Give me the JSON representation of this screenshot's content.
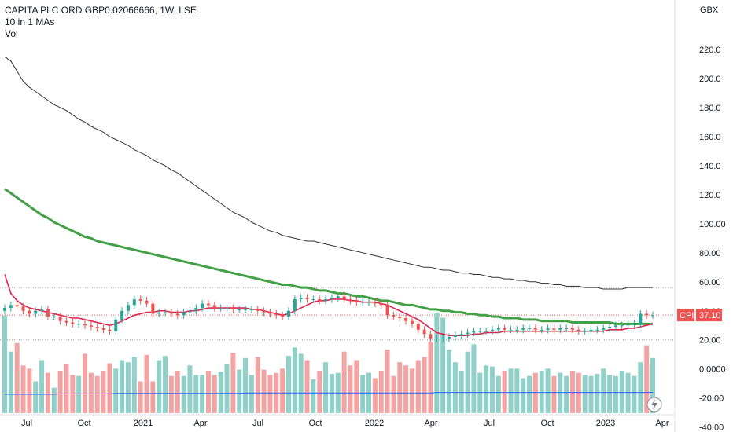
{
  "legend": {
    "title": "CAPITA PLC ORD GBP0.02066666, 1W, LSE",
    "ma_label": "10 in 1 MAs",
    "vol_label": "Vol"
  },
  "price_axis": {
    "unit": "GBX",
    "ticks": [
      "220.0",
      "200.0",
      "180.0",
      "160.0",
      "140.0",
      "120.0",
      "100.00",
      "80.00",
      "60.00",
      "40.00",
      "20.00",
      "0.0000",
      "-20.00",
      "-40.00"
    ],
    "current_badge": {
      "symbol": "CPI",
      "value": "37.10"
    }
  },
  "time_axis": {
    "ticks": [
      "Jul",
      "Oct",
      "2021",
      "Apr",
      "Jul",
      "Oct",
      "2022",
      "Apr",
      "Jul",
      "Oct",
      "2023",
      "Apr"
    ]
  },
  "colors": {
    "up": "#26a69a",
    "down": "#ef5350",
    "vol_up": "#8fd0c9",
    "vol_down": "#f4a3a3",
    "ma_red": "#e0244e",
    "ma_green": "#43a047",
    "ma_black": "#333333",
    "ma_vol": "#2962ff",
    "axis_text": "#131722"
  },
  "chart_data": {
    "type": "candlestick",
    "title": "CAPITA PLC ORD GBP0.02066666, 1W, LSE",
    "unit": "GBX",
    "y_ticks": [
      220,
      200,
      180,
      160,
      140,
      120,
      100,
      80,
      60,
      40,
      20,
      0,
      -20,
      -40
    ],
    "x_ticks": [
      "Jul",
      "Oct",
      "2021",
      "Apr",
      "Jul",
      "Oct",
      "2022",
      "Apr",
      "Jul",
      "Oct",
      "2023",
      "Apr"
    ],
    "close": [
      42,
      44,
      43,
      40,
      38,
      40,
      41,
      36,
      36,
      33,
      32,
      31,
      31,
      30,
      29,
      28,
      27,
      26,
      34,
      40,
      44,
      48,
      47,
      45,
      38,
      39,
      39,
      38,
      37,
      39,
      40,
      42,
      45,
      44,
      42,
      42,
      42,
      41,
      41,
      41,
      41,
      40,
      39,
      38,
      37,
      36,
      40,
      48,
      49,
      48,
      48,
      47,
      48,
      49,
      50,
      48,
      47,
      46,
      46,
      46,
      45,
      44,
      37,
      36,
      35,
      33,
      31,
      27,
      24,
      21,
      21,
      21,
      22,
      23,
      24,
      25,
      26,
      26,
      26,
      27,
      28,
      27,
      27,
      27,
      28,
      28,
      27,
      27,
      28,
      27,
      28,
      28,
      27,
      26,
      26,
      27,
      27,
      28,
      29,
      30,
      30,
      31,
      31,
      38,
      37,
      37
    ],
    "ma_red": [
      65,
      52,
      47,
      44,
      42,
      41,
      40,
      39,
      38,
      37,
      36,
      35,
      35,
      34,
      33,
      32,
      31,
      30,
      31,
      33,
      35,
      37,
      38,
      39,
      39,
      40,
      40,
      39,
      39,
      39,
      40,
      40,
      41,
      42,
      42,
      42,
      42,
      42,
      42,
      42,
      41,
      41,
      40,
      39,
      38,
      37,
      38,
      40,
      42,
      44,
      46,
      47,
      47,
      48,
      48,
      48,
      47,
      47,
      46,
      46,
      46,
      45,
      44,
      42,
      40,
      38,
      36,
      34,
      31,
      28,
      25,
      24,
      23,
      23,
      23,
      23,
      24,
      24,
      25,
      25,
      25,
      26,
      26,
      26,
      26,
      26,
      26,
      26,
      26,
      26,
      26,
      26,
      26,
      26,
      26,
      26,
      26,
      26,
      27,
      27,
      27,
      28,
      28,
      29,
      30,
      31
    ],
    "ma_green": [
      124,
      121,
      118,
      115,
      112,
      109,
      106,
      104,
      101,
      99,
      97,
      95,
      93,
      91,
      90,
      88,
      87,
      86,
      85,
      84,
      83,
      82,
      81,
      80,
      79,
      78,
      77,
      76,
      75,
      74,
      73,
      72,
      71,
      70,
      69,
      68,
      67,
      66,
      65,
      64,
      63,
      62,
      61,
      60,
      59,
      58,
      58,
      57,
      56,
      56,
      55,
      54,
      54,
      53,
      52,
      52,
      51,
      50,
      50,
      49,
      48,
      47,
      47,
      46,
      45,
      44,
      44,
      43,
      42,
      41,
      41,
      40,
      40,
      39,
      39,
      38,
      38,
      37,
      37,
      36,
      36,
      35,
      35,
      35,
      34,
      34,
      34,
      33,
      33,
      33,
      33,
      33,
      32,
      32,
      32,
      32,
      32,
      32,
      32,
      31,
      31,
      31,
      31,
      31,
      31,
      31
    ],
    "ma_black": [
      215,
      212,
      205,
      198,
      194,
      191,
      188,
      185,
      182,
      180,
      178,
      175,
      172,
      170,
      167,
      165,
      163,
      160,
      158,
      156,
      154,
      151,
      149,
      147,
      144,
      142,
      140,
      137,
      135,
      132,
      129,
      126,
      123,
      120,
      117,
      114,
      111,
      108,
      106,
      104,
      101,
      99,
      97,
      95,
      94,
      92,
      91,
      90,
      89,
      88,
      88,
      87,
      86,
      85,
      84,
      83,
      82,
      81,
      80,
      79,
      78,
      77,
      76,
      75,
      74,
      73,
      72,
      71,
      70,
      70,
      69,
      68,
      68,
      67,
      66,
      66,
      65,
      65,
      64,
      63,
      63,
      62,
      62,
      61,
      61,
      60,
      60,
      59,
      59,
      58,
      58,
      57,
      57,
      57,
      56,
      56,
      56,
      55,
      55,
      55,
      55,
      56,
      56,
      56,
      56,
      56
    ],
    "volume": [
      92,
      58,
      66,
      45,
      42,
      30,
      50,
      38,
      24,
      40,
      46,
      36,
      35,
      56,
      38,
      35,
      40,
      47,
      42,
      50,
      48,
      53,
      30,
      55,
      30,
      50,
      54,
      35,
      40,
      35,
      45,
      36,
      36,
      40,
      36,
      39,
      46,
      57,
      41,
      52,
      36,
      53,
      41,
      36,
      38,
      42,
      54,
      62,
      56,
      50,
      32,
      40,
      48,
      37,
      38,
      58,
      45,
      50,
      36,
      38,
      33,
      40,
      60,
      35,
      48,
      45,
      42,
      50,
      53,
      67,
      95,
      90,
      60,
      48,
      40,
      58,
      65,
      38,
      45,
      44,
      35,
      40,
      42,
      42,
      33,
      35,
      38,
      40,
      42,
      35,
      38,
      35,
      40,
      38,
      36,
      35,
      37,
      42,
      36,
      35,
      40,
      38,
      35,
      48,
      64,
      52
    ],
    "volume_ma": [
      40,
      40,
      40,
      40,
      40,
      40,
      40,
      40,
      40,
      41,
      41,
      41,
      41,
      41,
      41,
      41,
      41,
      41,
      42,
      42,
      42,
      42,
      42,
      42,
      42,
      42,
      42,
      42,
      42,
      42,
      42,
      42,
      42,
      42,
      42,
      42,
      42,
      42,
      42,
      43,
      43,
      43,
      43,
      43,
      43,
      43,
      43,
      43,
      43,
      43,
      43,
      43,
      43,
      43,
      43,
      43,
      43,
      43,
      43,
      43,
      43,
      43,
      43,
      43,
      43,
      43,
      43,
      43,
      43,
      43,
      44,
      44,
      44,
      44,
      44,
      44,
      44,
      44,
      44,
      44,
      44,
      44,
      44,
      44,
      44,
      44,
      44,
      44,
      44,
      44,
      44,
      44,
      44,
      44,
      44,
      44,
      44,
      44,
      44,
      44,
      44,
      44,
      44,
      44,
      44,
      44
    ],
    "last_price": 37.1
  }
}
